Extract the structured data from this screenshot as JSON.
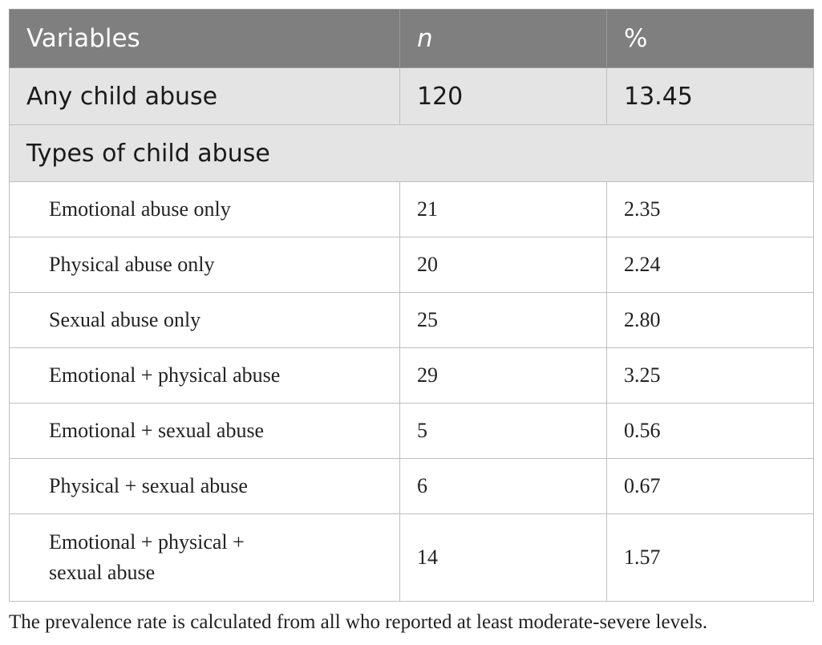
{
  "table": {
    "headers": [
      "Variables",
      "n",
      "%"
    ],
    "any_row": {
      "label": "Any child abuse",
      "n": "120",
      "pct": "13.45"
    },
    "section_label": "Types of child abuse",
    "rows": [
      {
        "label": "Emotional abuse only",
        "n": "21",
        "pct": "2.35"
      },
      {
        "label": "Physical abuse only",
        "n": "20",
        "pct": "2.24"
      },
      {
        "label": "Sexual abuse only",
        "n": "25",
        "pct": "2.80"
      },
      {
        "label": "Emotional + physical abuse",
        "n": "29",
        "pct": "3.25"
      },
      {
        "label": "Emotional + sexual abuse",
        "n": "5",
        "pct": "0.56"
      },
      {
        "label": "Physical + sexual abuse",
        "n": "6",
        "pct": "0.67"
      },
      {
        "label_line1": "Emotional + physical +",
        "label_line2": "sexual abuse",
        "n": "14",
        "pct": "1.57"
      }
    ]
  },
  "footnote": "The prevalence rate is calculated from all who reported at least moderate-severe levels.",
  "colors": {
    "header_bg": "#7f7f7f",
    "shaded_bg": "#e4e4e4",
    "border": "#bfbfbf"
  }
}
